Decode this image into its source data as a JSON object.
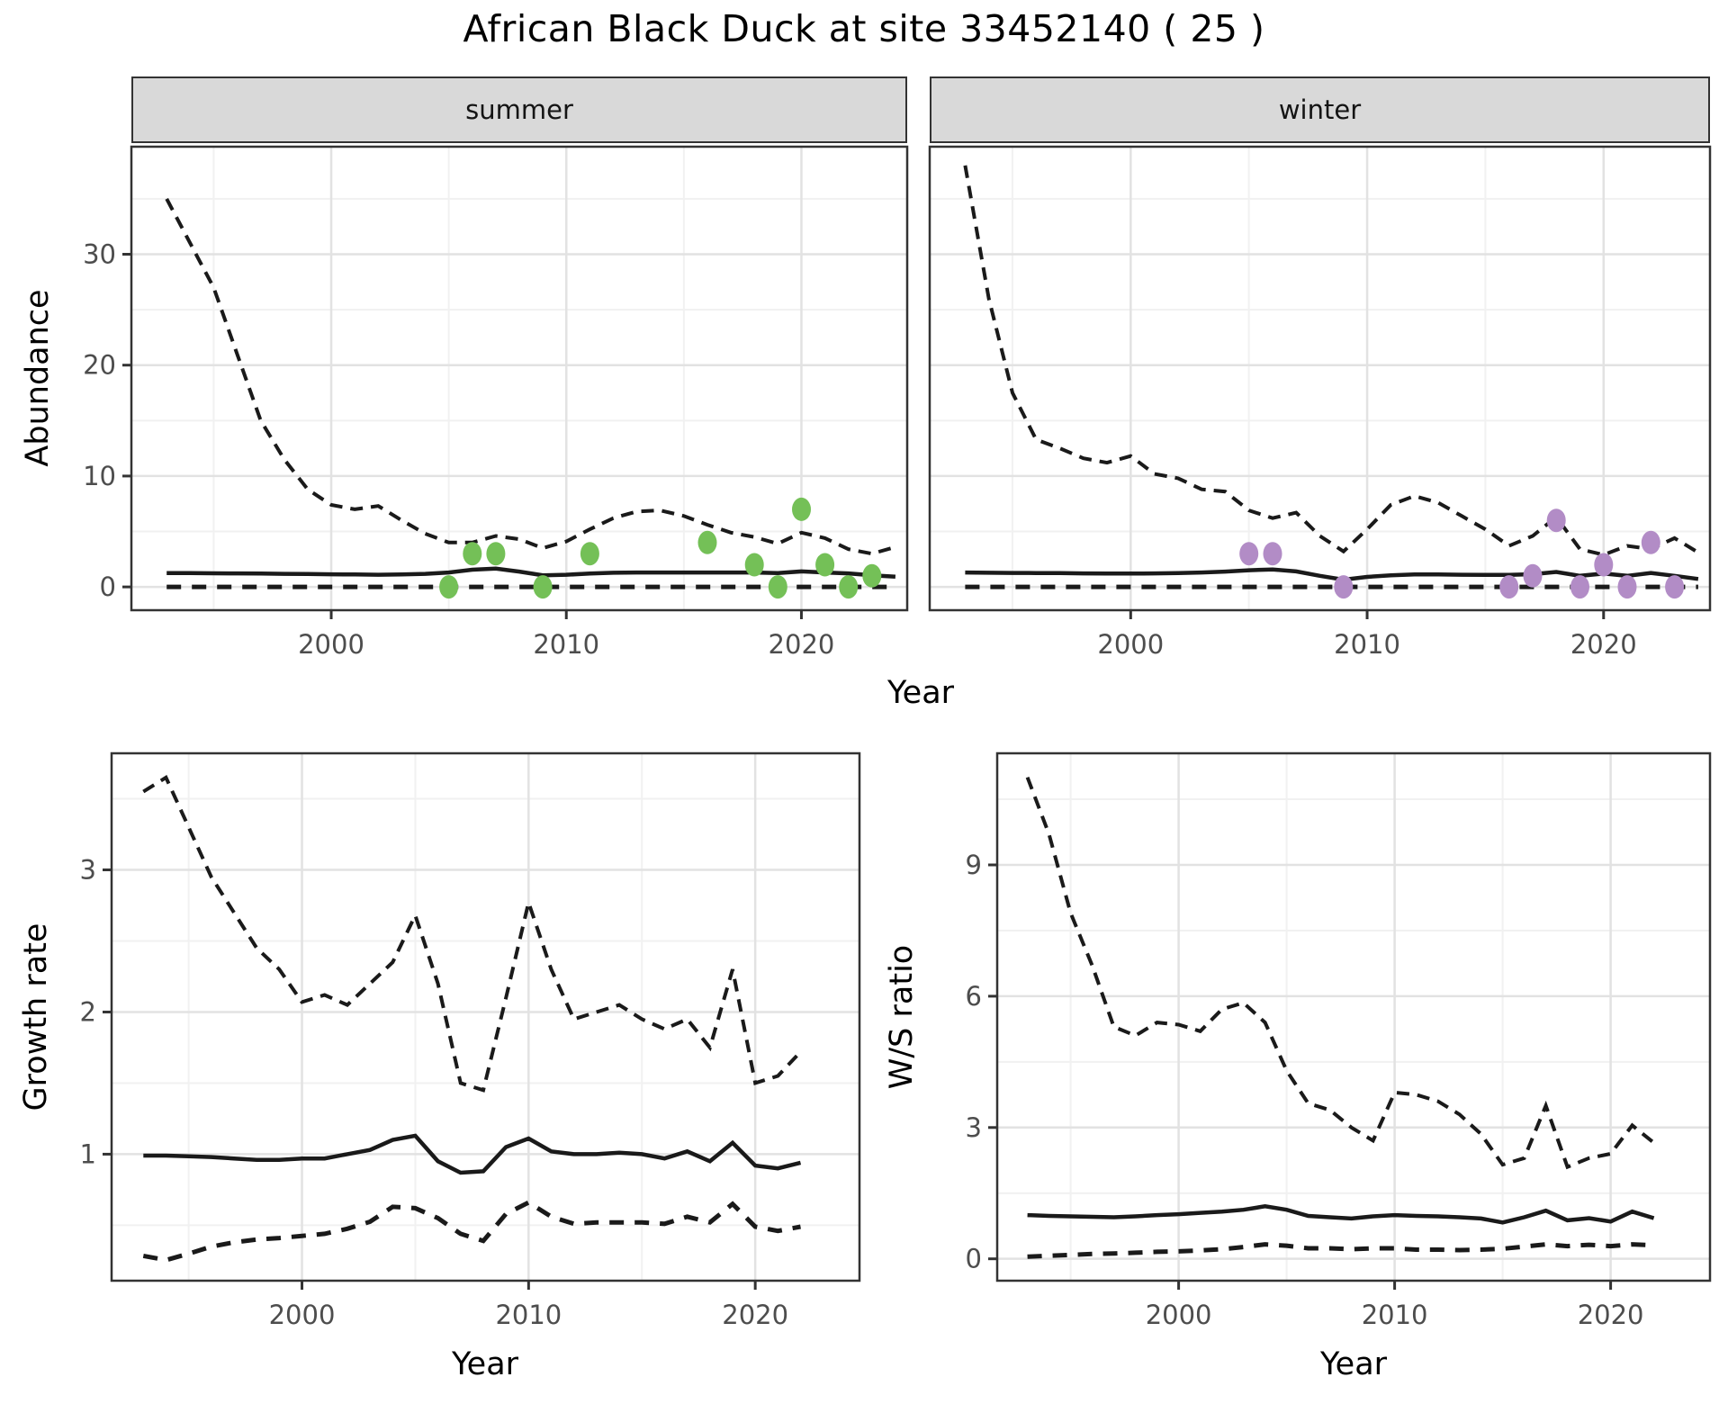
{
  "title": "African Black Duck at site 33452140 ( 25 )",
  "colors": {
    "line": "#1a1a1a",
    "border": "#333333",
    "grid_major": "#e2e2e2",
    "grid_minor": "#f1f1f1",
    "axis_text": "#4d4d4d",
    "strip_bg": "#d9d9d9",
    "summer_points": "#74c057",
    "winter_points": "#b28cc6"
  },
  "chart_data": [
    {
      "id": "abundance-summer",
      "type": "line",
      "facet_label": "summer",
      "xlabel": "Year",
      "ylabel": "Abundance",
      "xlim": [
        1991.5,
        2024.5
      ],
      "ylim": [
        -2.1,
        39.7
      ],
      "x_ticks": [
        2000,
        2010,
        2020
      ],
      "y_ticks": [
        0,
        10,
        20,
        30
      ],
      "x_minor": [
        1995,
        2005,
        2015
      ],
      "y_minor": [
        5,
        15,
        25,
        35
      ],
      "show_y_tick_labels": true,
      "x": [
        1993,
        1994,
        1995,
        1996,
        1997,
        1998,
        1999,
        2000,
        2001,
        2002,
        2003,
        2004,
        2005,
        2006,
        2007,
        2008,
        2009,
        2010,
        2011,
        2012,
        2013,
        2014,
        2015,
        2016,
        2017,
        2018,
        2019,
        2020,
        2021,
        2022,
        2023,
        2024
      ],
      "series": [
        {
          "name": "upper-credible-limit",
          "style": "dashed",
          "y": [
            35,
            31,
            27,
            21,
            15,
            11.5,
            8.8,
            7.4,
            7.0,
            7.3,
            6.0,
            4.8,
            4.0,
            4.0,
            4.6,
            4.3,
            3.5,
            4.1,
            5.2,
            6.2,
            6.8,
            6.9,
            6.4,
            5.6,
            4.9,
            4.5,
            3.9,
            4.9,
            4.4,
            3.4,
            3.0,
            3.6
          ]
        },
        {
          "name": "median-abundance",
          "style": "solid",
          "y": [
            1.25,
            1.24,
            1.23,
            1.22,
            1.2,
            1.18,
            1.16,
            1.14,
            1.12,
            1.1,
            1.12,
            1.18,
            1.3,
            1.55,
            1.65,
            1.38,
            1.05,
            1.1,
            1.2,
            1.28,
            1.3,
            1.3,
            1.3,
            1.3,
            1.3,
            1.3,
            1.25,
            1.4,
            1.3,
            1.22,
            1.05,
            0.92
          ]
        },
        {
          "name": "lower-credible-limit",
          "style": "dashed-bold",
          "y": [
            0,
            0,
            0,
            0,
            0,
            0,
            0,
            0,
            0,
            0,
            0,
            0,
            0,
            0,
            0,
            0,
            0,
            0,
            0,
            0,
            0,
            0,
            0,
            0,
            0,
            0,
            0,
            0,
            0,
            0,
            0,
            0
          ]
        }
      ],
      "points": {
        "name": "observed-summer-counts",
        "color": "#74c057",
        "xy": [
          [
            2005,
            0
          ],
          [
            2006,
            3
          ],
          [
            2007,
            3
          ],
          [
            2009,
            0
          ],
          [
            2011,
            3
          ],
          [
            2016,
            4
          ],
          [
            2018,
            2
          ],
          [
            2019,
            0
          ],
          [
            2020,
            7
          ],
          [
            2021,
            2
          ],
          [
            2022,
            0
          ],
          [
            2023,
            1
          ]
        ]
      }
    },
    {
      "id": "abundance-winter",
      "type": "line",
      "facet_label": "winter",
      "xlabel": "Year",
      "ylabel": "Abundance",
      "xlim": [
        1991.5,
        2024.5
      ],
      "ylim": [
        -2.1,
        39.7
      ],
      "x_ticks": [
        2000,
        2010,
        2020
      ],
      "y_ticks": [
        0,
        10,
        20,
        30
      ],
      "x_minor": [
        1995,
        2005,
        2015
      ],
      "y_minor": [
        5,
        15,
        25,
        35
      ],
      "show_y_tick_labels": false,
      "x": [
        1993,
        1994,
        1995,
        1996,
        1997,
        1998,
        1999,
        2000,
        2001,
        2002,
        2003,
        2004,
        2005,
        2006,
        2007,
        2008,
        2009,
        2010,
        2011,
        2012,
        2013,
        2014,
        2015,
        2016,
        2017,
        2018,
        2019,
        2020,
        2021,
        2022,
        2023,
        2024
      ],
      "series": [
        {
          "name": "upper-credible-limit",
          "style": "dashed",
          "y": [
            38,
            26,
            17.5,
            13.3,
            12.5,
            11.6,
            11.2,
            11.8,
            10.2,
            9.8,
            8.8,
            8.6,
            6.9,
            6.2,
            6.7,
            4.6,
            3.2,
            5.2,
            7.4,
            8.2,
            7.6,
            6.4,
            5.2,
            3.7,
            4.6,
            6.3,
            3.4,
            2.9,
            3.7,
            3.4,
            4.4,
            3.1
          ]
        },
        {
          "name": "median-abundance",
          "style": "solid",
          "y": [
            1.3,
            1.28,
            1.26,
            1.25,
            1.24,
            1.22,
            1.2,
            1.2,
            1.22,
            1.25,
            1.3,
            1.38,
            1.5,
            1.58,
            1.4,
            1.0,
            0.65,
            0.9,
            1.05,
            1.12,
            1.12,
            1.1,
            1.08,
            1.08,
            1.15,
            1.35,
            1.0,
            1.2,
            1.0,
            1.25,
            1.0,
            0.72
          ]
        },
        {
          "name": "lower-credible-limit",
          "style": "dashed-bold",
          "y": [
            0,
            0,
            0,
            0,
            0,
            0,
            0,
            0,
            0,
            0,
            0,
            0,
            0,
            0,
            0,
            0,
            0,
            0,
            0,
            0,
            0,
            0,
            0,
            0,
            0,
            0,
            0,
            0,
            0,
            0,
            0,
            0
          ]
        }
      ],
      "points": {
        "name": "observed-winter-counts",
        "color": "#b28cc6",
        "xy": [
          [
            2005,
            3
          ],
          [
            2006,
            3
          ],
          [
            2009,
            0
          ],
          [
            2016,
            0
          ],
          [
            2017,
            1
          ],
          [
            2018,
            6
          ],
          [
            2019,
            0
          ],
          [
            2020,
            2
          ],
          [
            2021,
            0
          ],
          [
            2022,
            4
          ],
          [
            2023,
            0
          ]
        ]
      }
    },
    {
      "id": "growth-rate",
      "type": "line",
      "facet_label": "",
      "xlabel": "Year",
      "ylabel": "Growth rate",
      "xlim": [
        1991.6,
        2024.6
      ],
      "ylim": [
        0.11,
        3.82
      ],
      "x_ticks": [
        2000,
        2010,
        2020
      ],
      "y_ticks": [
        1,
        2,
        3
      ],
      "x_minor": [
        1995,
        2005,
        2015
      ],
      "y_minor": [
        0.5,
        1.5,
        2.5,
        3.5
      ],
      "show_y_tick_labels": true,
      "x": [
        1993,
        1994,
        1995,
        1996,
        1997,
        1998,
        1999,
        2000,
        2001,
        2002,
        2003,
        2004,
        2005,
        2006,
        2007,
        2008,
        2009,
        2010,
        2011,
        2012,
        2013,
        2014,
        2015,
        2016,
        2017,
        2018,
        2019,
        2020,
        2021,
        2022
      ],
      "series": [
        {
          "name": "upper-credible-limit",
          "style": "dashed",
          "y": [
            3.55,
            3.65,
            3.3,
            2.95,
            2.7,
            2.45,
            2.3,
            2.07,
            2.12,
            2.05,
            2.2,
            2.35,
            2.68,
            2.2,
            1.5,
            1.45,
            2.1,
            2.77,
            2.3,
            1.95,
            2.0,
            2.05,
            1.95,
            1.88,
            1.95,
            1.75,
            2.3,
            1.5,
            1.55,
            1.72
          ]
        },
        {
          "name": "median-growth-rate",
          "style": "solid",
          "y": [
            0.99,
            0.99,
            0.985,
            0.98,
            0.97,
            0.96,
            0.96,
            0.97,
            0.97,
            1.0,
            1.03,
            1.1,
            1.13,
            0.95,
            0.87,
            0.88,
            1.05,
            1.11,
            1.02,
            1.0,
            1.0,
            1.01,
            1.0,
            0.97,
            1.02,
            0.95,
            1.08,
            0.92,
            0.9,
            0.94
          ]
        },
        {
          "name": "lower-credible-limit",
          "style": "dashed-bold",
          "y": [
            0.285,
            0.255,
            0.3,
            0.35,
            0.38,
            0.4,
            0.41,
            0.425,
            0.44,
            0.475,
            0.525,
            0.63,
            0.62,
            0.55,
            0.44,
            0.39,
            0.58,
            0.66,
            0.56,
            0.51,
            0.52,
            0.52,
            0.52,
            0.51,
            0.56,
            0.52,
            0.65,
            0.49,
            0.46,
            0.49
          ]
        }
      ],
      "points": null
    },
    {
      "id": "ws-ratio",
      "type": "line",
      "facet_label": "",
      "xlabel": "Year",
      "ylabel": "W/S ratio",
      "xlim": [
        1991.6,
        2024.6
      ],
      "ylim": [
        -0.5,
        11.55
      ],
      "x_ticks": [
        2000,
        2010,
        2020
      ],
      "y_ticks": [
        0,
        3,
        6,
        9
      ],
      "x_minor": [
        1995,
        2005,
        2015
      ],
      "y_minor": [
        1.5,
        4.5,
        7.5,
        10.5
      ],
      "show_y_tick_labels": true,
      "x": [
        1993,
        1994,
        1995,
        1996,
        1997,
        1998,
        1999,
        2000,
        2001,
        2002,
        2003,
        2004,
        2005,
        2006,
        2007,
        2008,
        2009,
        2010,
        2011,
        2012,
        2013,
        2014,
        2015,
        2016,
        2017,
        2018,
        2019,
        2020,
        2021,
        2022
      ],
      "series": [
        {
          "name": "upper-credible-limit",
          "style": "dashed",
          "y": [
            11.0,
            9.7,
            7.9,
            6.7,
            5.3,
            5.1,
            5.4,
            5.35,
            5.2,
            5.7,
            5.85,
            5.4,
            4.3,
            3.55,
            3.4,
            3.0,
            2.7,
            3.8,
            3.75,
            3.6,
            3.3,
            2.85,
            2.15,
            2.3,
            3.5,
            2.1,
            2.3,
            2.4,
            3.05,
            2.65
          ]
        },
        {
          "name": "median-ws-ratio",
          "style": "solid",
          "y": [
            1.0,
            0.98,
            0.97,
            0.96,
            0.95,
            0.97,
            1.0,
            1.02,
            1.05,
            1.08,
            1.12,
            1.2,
            1.12,
            0.98,
            0.95,
            0.92,
            0.97,
            1.0,
            0.98,
            0.97,
            0.95,
            0.92,
            0.83,
            0.95,
            1.1,
            0.88,
            0.93,
            0.85,
            1.08,
            0.93
          ]
        },
        {
          "name": "lower-credible-limit",
          "style": "dashed-bold",
          "y": [
            0.05,
            0.07,
            0.09,
            0.11,
            0.12,
            0.14,
            0.16,
            0.17,
            0.19,
            0.22,
            0.27,
            0.33,
            0.3,
            0.24,
            0.24,
            0.22,
            0.24,
            0.24,
            0.21,
            0.21,
            0.2,
            0.21,
            0.23,
            0.28,
            0.33,
            0.29,
            0.32,
            0.29,
            0.33,
            0.31
          ]
        }
      ],
      "points": null
    }
  ]
}
